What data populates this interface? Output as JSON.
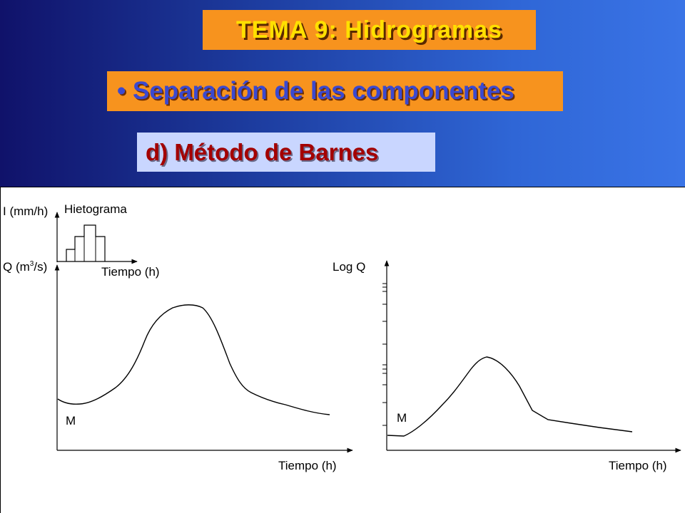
{
  "header": {
    "title": "TEMA 9: Hidrogramas",
    "subtitle": "Separación de las componentes",
    "method": "d) Método de Barnes",
    "colors": {
      "gradient_left": "#10126a",
      "gradient_right": "#3a74e6",
      "title_box": "#f7931e",
      "title_text": "#ffe000",
      "subtitle_text": "#3b49d0",
      "method_box": "#c9d6ff",
      "method_text": "#a40000"
    }
  },
  "diagram": {
    "left": {
      "hyetograph_title": "Hietograma",
      "intensity_label": "I (mm/h)",
      "q_label_prefix": "Q (m",
      "q_label_exp": "3",
      "q_label_suffix": "/s)",
      "hyeto_x_label": "Tiempo (h)",
      "x_label": "Tiempo (h)",
      "point_label": "M"
    },
    "right": {
      "y_label": "Log Q",
      "x_label": "Tiempo (h)",
      "point_label": "M"
    }
  }
}
